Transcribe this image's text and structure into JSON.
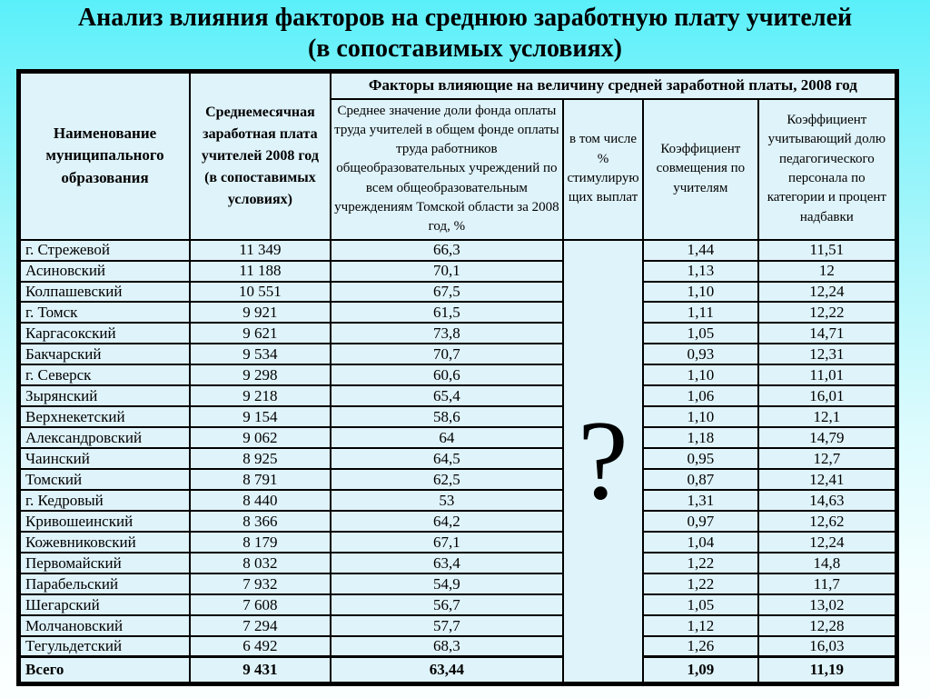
{
  "slide": {
    "title_line1": "Анализ влияния факторов на среднюю заработную плату учителей",
    "title_line2": "(в сопоставимых условиях)"
  },
  "colors": {
    "background_top": "#5af0fa",
    "background_bottom": "#fcffff",
    "cell_background": "#dff3fa",
    "border": "#000000",
    "text": "#000000"
  },
  "table": {
    "headers": {
      "col_name": "Наименование муниципального образования",
      "col_salary": "Среднемесячная заработная плата учителей 2008 год (в сопоставимых условиях)",
      "factors_group": "Факторы влияющие на величину средней заработной платы, 2008 год",
      "col_share": "Среднее значение доли фонда оплаты труда учителей в общем фонде оплаты труда работников общеобразовательных учреждений по всем общеобразовательным учреждениям Томской области за 2008 год, %",
      "col_stimul": "в том числе % стимулирующих выплат",
      "col_coeff_combine": "Коэффициент совмещения по учителям",
      "col_coeff_pedagog": "Коэффициент учитывающий долю педагогического персонала по категории и процент надбавки"
    },
    "stimul_placeholder": "?",
    "rows": [
      {
        "name": "г. Стрежевой",
        "salary": "11 349",
        "share": "66,3",
        "coeff_combine": "1,44",
        "coeff_pedagog": "11,51"
      },
      {
        "name": "Асиновский",
        "salary": "11 188",
        "share": "70,1",
        "coeff_combine": "1,13",
        "coeff_pedagog": "12"
      },
      {
        "name": "Колпашевский",
        "salary": "10 551",
        "share": "67,5",
        "coeff_combine": "1,10",
        "coeff_pedagog": "12,24"
      },
      {
        "name": "г. Томск",
        "salary": "9 921",
        "share": "61,5",
        "coeff_combine": "1,11",
        "coeff_pedagog": "12,22"
      },
      {
        "name": "Каргасокский",
        "salary": "9 621",
        "share": "73,8",
        "coeff_combine": "1,05",
        "coeff_pedagog": "14,71"
      },
      {
        "name": "Бакчарский",
        "salary": "9 534",
        "share": "70,7",
        "coeff_combine": "0,93",
        "coeff_pedagog": "12,31"
      },
      {
        "name": "г. Северск",
        "salary": "9 298",
        "share": "60,6",
        "coeff_combine": "1,10",
        "coeff_pedagog": "11,01"
      },
      {
        "name": "Зырянский",
        "salary": "9 218",
        "share": "65,4",
        "coeff_combine": "1,06",
        "coeff_pedagog": "16,01"
      },
      {
        "name": "Верхнекетский",
        "salary": "9 154",
        "share": "58,6",
        "coeff_combine": "1,10",
        "coeff_pedagog": "12,1"
      },
      {
        "name": "Александровский",
        "salary": "9 062",
        "share": "64",
        "coeff_combine": "1,18",
        "coeff_pedagog": "14,79"
      },
      {
        "name": "Чаинский",
        "salary": "8 925",
        "share": "64,5",
        "coeff_combine": "0,95",
        "coeff_pedagog": "12,7"
      },
      {
        "name": "Томский",
        "salary": "8 791",
        "share": "62,5",
        "coeff_combine": "0,87",
        "coeff_pedagog": "12,41"
      },
      {
        "name": "г. Кедровый",
        "salary": "8 440",
        "share": "53",
        "coeff_combine": "1,31",
        "coeff_pedagog": "14,63"
      },
      {
        "name": "Кривошеинский",
        "salary": "8 366",
        "share": "64,2",
        "coeff_combine": "0,97",
        "coeff_pedagog": "12,62"
      },
      {
        "name": "Кожевниковский",
        "salary": "8 179",
        "share": "67,1",
        "coeff_combine": "1,04",
        "coeff_pedagog": "12,24"
      },
      {
        "name": "Первомайский",
        "salary": "8 032",
        "share": "63,4",
        "coeff_combine": "1,22",
        "coeff_pedagog": "14,8"
      },
      {
        "name": "Парабельский",
        "salary": "7 932",
        "share": "54,9",
        "coeff_combine": "1,22",
        "coeff_pedagog": "11,7"
      },
      {
        "name": "Шегарский",
        "salary": "7 608",
        "share": "56,7",
        "coeff_combine": "1,05",
        "coeff_pedagog": "13,02"
      },
      {
        "name": "Молчановский",
        "salary": "7 294",
        "share": "57,7",
        "coeff_combine": "1,12",
        "coeff_pedagog": "12,28"
      },
      {
        "name": "Тегульдетский",
        "salary": "6 492",
        "share": "68,3",
        "coeff_combine": "1,26",
        "coeff_pedagog": "16,03"
      }
    ],
    "total": {
      "total": true,
      "name": "Всего",
      "salary": "9 431",
      "share": "63,44",
      "coeff_combine": "1,09",
      "coeff_pedagog": "11,19"
    }
  }
}
